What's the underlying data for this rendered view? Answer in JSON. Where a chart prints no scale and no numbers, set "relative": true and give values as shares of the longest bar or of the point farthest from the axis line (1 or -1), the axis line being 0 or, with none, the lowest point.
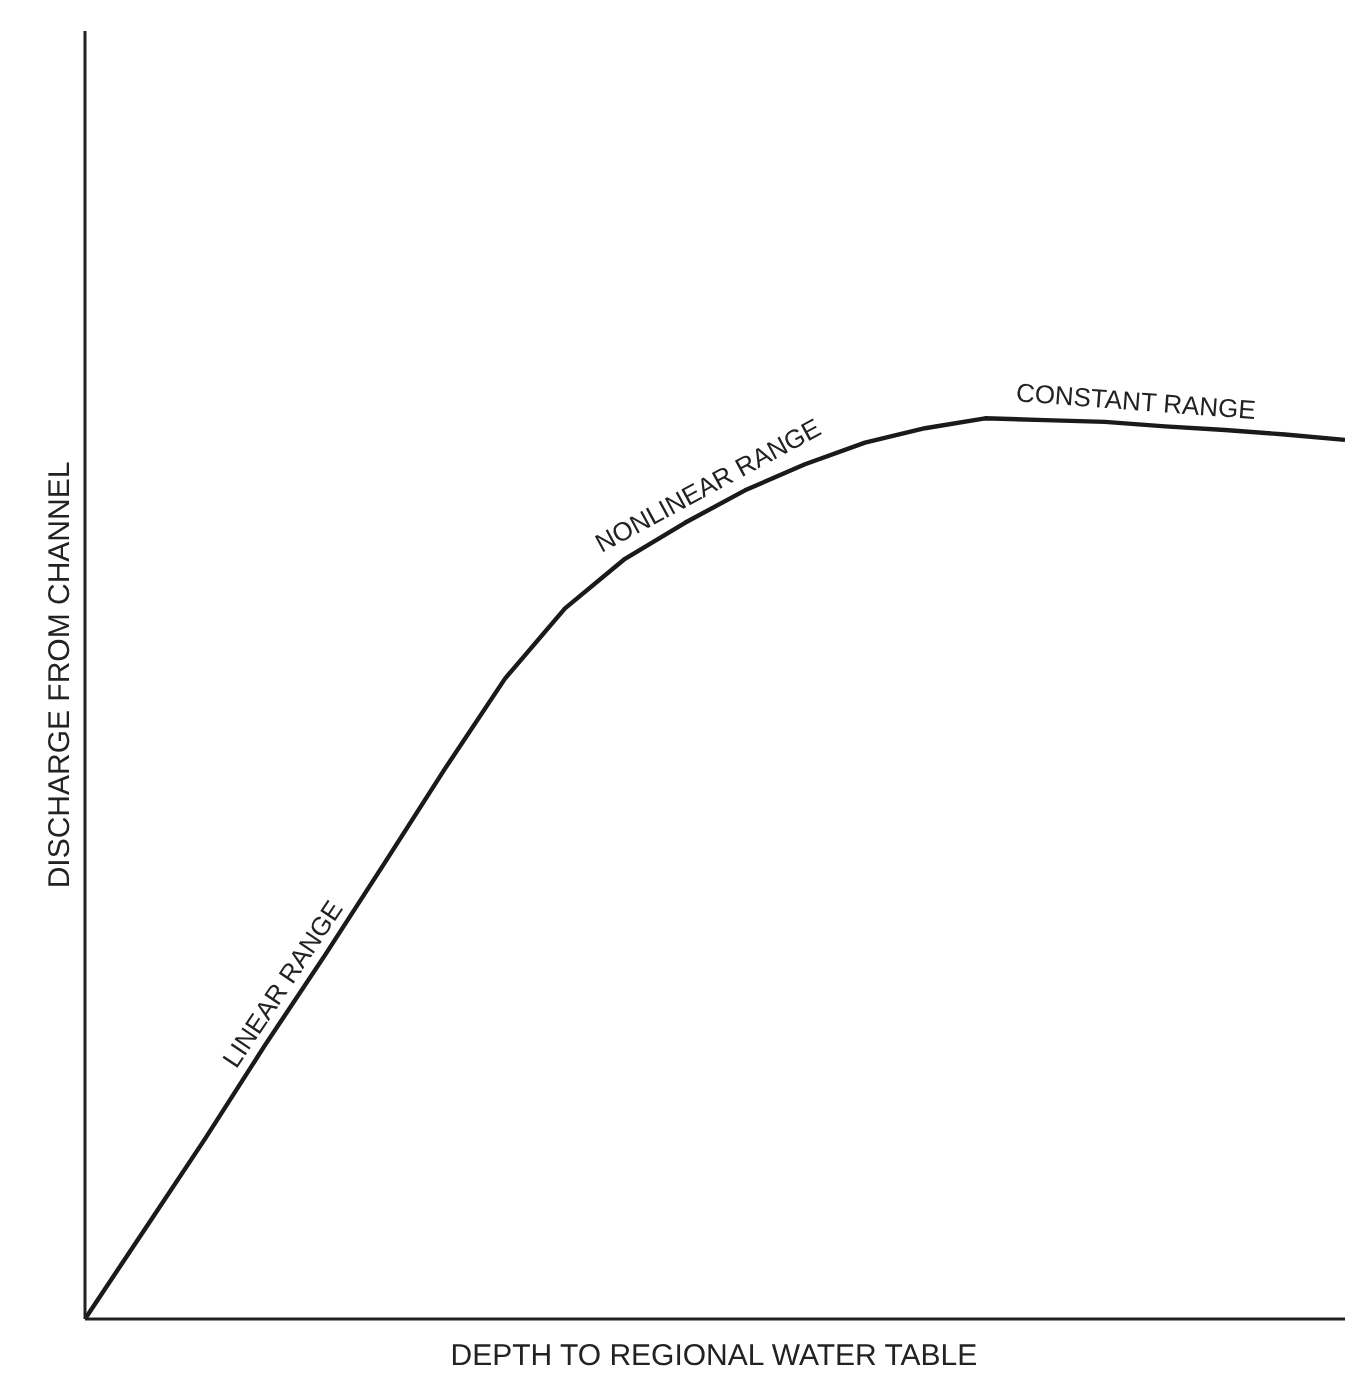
{
  "chart_data": {
    "type": "line",
    "relative": true,
    "xlabel": "DEPTH TO REGIONAL WATER TABLE",
    "ylabel": "DISCHARGE FROM CHANNEL",
    "categories": [
      null,
      null,
      null,
      null,
      null,
      null,
      null,
      null,
      null,
      null,
      null,
      null,
      null,
      null,
      null,
      null,
      null,
      null,
      null,
      null,
      null,
      null
    ],
    "series": [
      {
        "color": "#1a1a1a",
        "values": [
          0,
          0.1,
          0.2,
          0.304,
          0.404,
          0.507,
          0.611,
          0.711,
          0.789,
          0.844,
          0.884,
          0.92,
          0.949,
          0.973,
          0.989,
          1.0,
          0.998,
          0.996,
          0.991,
          0.987,
          0.982,
          0.976
        ]
      }
    ],
    "annotations": [
      "LINEAR RANGE",
      "NONLINEAR RANGE",
      "CONSTANT RANGE"
    ],
    "grid": false,
    "marker": "none",
    "line_style": "solid"
  }
}
